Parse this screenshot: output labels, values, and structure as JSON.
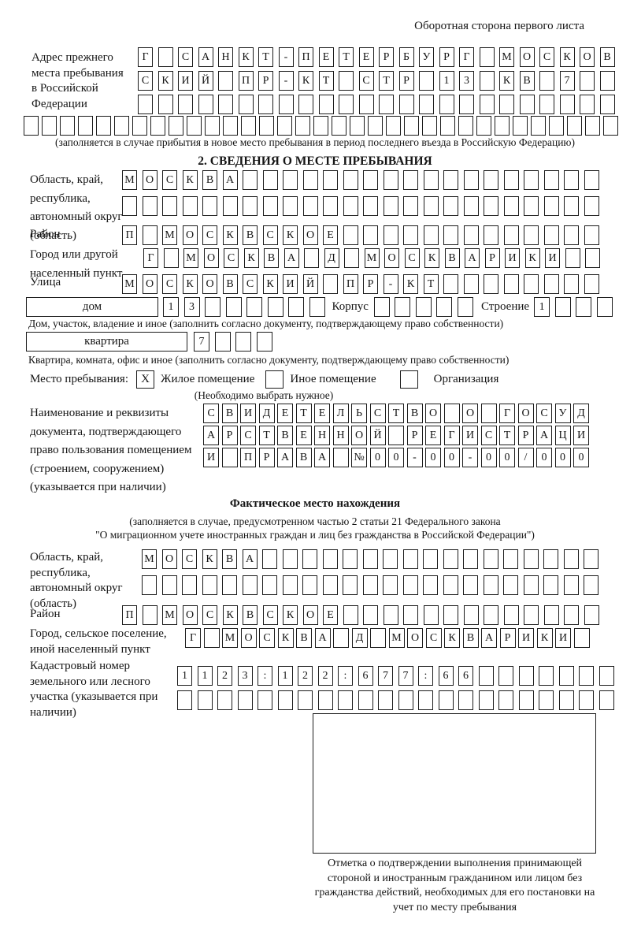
{
  "header": {
    "note": "Оборотная сторона первого листа"
  },
  "prev_address": {
    "label": "Адрес прежнего места пребывания в Российской Федерации",
    "row1": "Г САНКТ-ПЕТЕРБУРГ МОСКОВ",
    "row2": "СКИЙ ПР-КТ СТР 13 КВ 7",
    "row3": "",
    "row4": "",
    "note": "(заполняется в случае прибытия в новое место пребывания в период последнего въезда в Российскую Федерацию)"
  },
  "section2": {
    "title": "2. СВЕДЕНИЯ О МЕСТЕ ПРЕБЫВАНИЯ",
    "oblast": {
      "label": "Область, край, республика, автономный округ (область)",
      "row1": "МОСКВА",
      "row2": ""
    },
    "raion": {
      "label": "Район",
      "row": "П МОСКВСКОЕ"
    },
    "gorod": {
      "label": "Город или другой населенный пункт",
      "row": "Г МОСКВА Д МОСКВАРИКИ"
    },
    "ulitsa": {
      "label": "Улица",
      "row": "МОСКОВСКИЙ ПР-КТ"
    },
    "dom": {
      "label": "дом",
      "cells": "13",
      "korpus_label": "Корпус",
      "korpus_cells": "",
      "stroenie_label": "Строение",
      "stroenie_cells": "1",
      "note": "Дом, участок, владение и иное (заполнить согласно документу, подтверждающему право собственности)"
    },
    "kvartira": {
      "label": "квартира",
      "cells": "7",
      "note": "Квартира, комната, офис и иное (заполнить согласно документу, подтверждающему право собственности)"
    },
    "mesto": {
      "label": "Место пребывания:",
      "opt1": "Жилое помещение",
      "opt1_mark": "X",
      "opt2": "Иное помещение",
      "opt2_mark": "",
      "opt3": "Организация",
      "opt3_mark": "",
      "note": "(Необходимо выбрать нужное)"
    },
    "doc": {
      "label": "Наименование и реквизиты документа, подтверждающего право пользования помещением (строением, сооружением) (указывается при наличии)",
      "row1": "СВИДЕТЕЛЬСТВО О ГОСУД",
      "row2": "АРСТВЕННОЙ РЕГИСТРАЦИ",
      "row3": "И ПРАВА №00-00-00/000"
    }
  },
  "fact": {
    "title": "Фактическое место нахождения",
    "note1": "(заполняется в случае, предусмотренном частью 2 статьи 21 Федерального закона",
    "note2": "\"О миграционном учете иностранных граждан и лиц без гражданства в Российской Федерации\")",
    "oblast": {
      "label": "Область, край, республика, автономный округ (область)",
      "row1": "МОСКВА",
      "row2": ""
    },
    "raion": {
      "label": "Район",
      "row": "П МОСКВСКОЕ"
    },
    "gorod": {
      "label": "Город, сельское поселение, иной населенный пункт",
      "row": "Г МОСКВА Д МОСКВАРИКИ"
    },
    "kadastr": {
      "label": "Кадастровый номер земельного или лесного участка (указывается при наличии)",
      "row1": "1123:122:677:66",
      "row2": ""
    },
    "stamp_note": "Отметка о подтверждении выполнения принимающей стороной и иностранным гражданином или лицом без гражданства действий, необходимых для его постановки на учет по месту пребывания"
  }
}
